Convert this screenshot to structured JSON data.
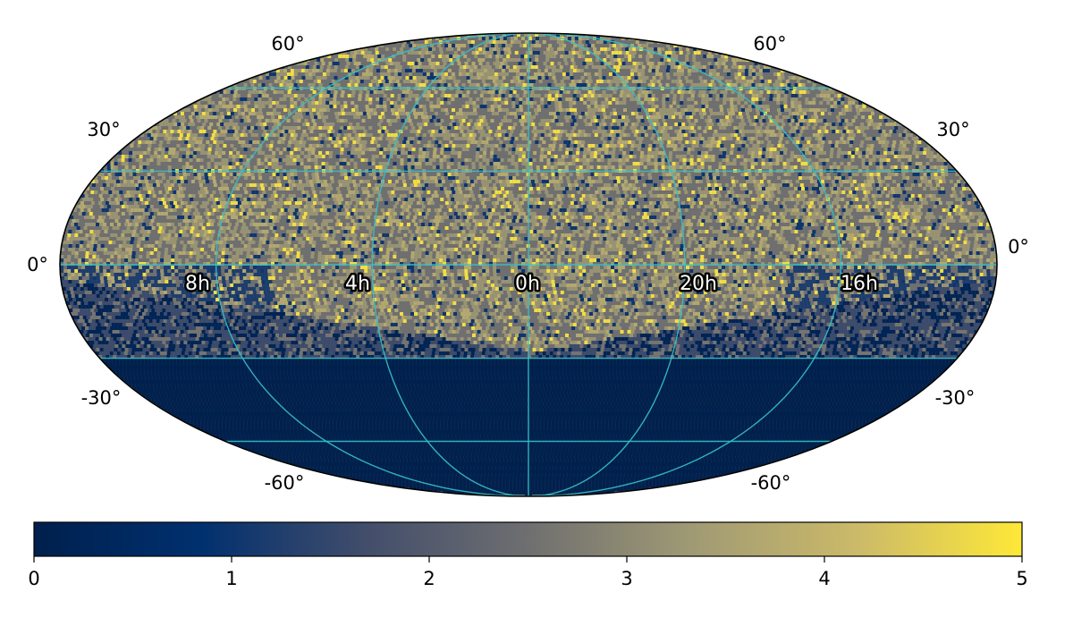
{
  "chart_data": {
    "type": "heatmap",
    "projection": "mollweide",
    "title": "",
    "coord_grid_color": "#36c1c9",
    "dec_labels": [
      "60°",
      "30°",
      "0°",
      "-30°",
      "-60°"
    ],
    "ra_labels": [
      "8h",
      "4h",
      "0h",
      "20h",
      "16h"
    ],
    "dec_grid_deg": [
      -60,
      -30,
      0,
      30,
      60
    ],
    "ra_grid_hours": [
      16,
      20,
      0,
      4,
      8
    ],
    "dec_coverage_limit_deg": -30,
    "colormap": "cividis",
    "color_stops": [
      "#00204d",
      "#00306f",
      "#414d6b",
      "#6f6f70",
      "#a09a74",
      "#cbba69",
      "#fee838"
    ],
    "colorbar": {
      "range": [
        0,
        5
      ],
      "ticks": [
        "0",
        "1",
        "2",
        "3",
        "4",
        "5"
      ],
      "label": ""
    },
    "value_summary": {
      "below_dec_minus_30": 0,
      "sky_typical": 2.5,
      "max": 5
    }
  }
}
